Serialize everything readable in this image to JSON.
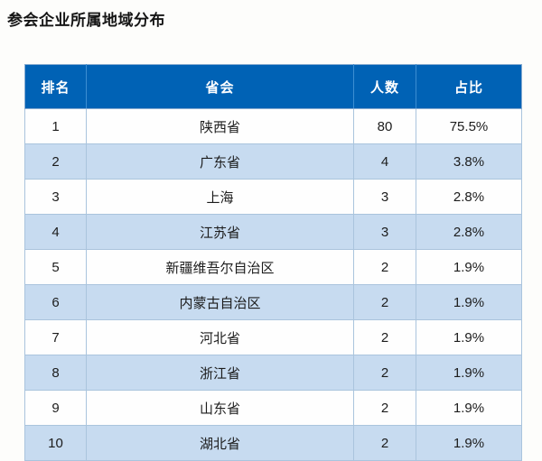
{
  "page": {
    "title": "参会企业所属地域分布"
  },
  "colors": {
    "header_bg": "#0062b5",
    "header_text": "#ffffff",
    "row_stripe": "#c7dbf0",
    "row_plain": "#fefefe",
    "border": "#aac4dd",
    "page_bg": "#fdfdfb"
  },
  "table": {
    "columns": [
      {
        "key": "rank",
        "label": "排名"
      },
      {
        "key": "region",
        "label": "省会"
      },
      {
        "key": "count",
        "label": "人数"
      },
      {
        "key": "pct",
        "label": "占比"
      }
    ],
    "rows": [
      {
        "rank": "1",
        "region": "陕西省",
        "count": "80",
        "pct": "75.5%"
      },
      {
        "rank": "2",
        "region": "广东省",
        "count": "4",
        "pct": "3.8%"
      },
      {
        "rank": "3",
        "region": "上海",
        "count": "3",
        "pct": "2.8%"
      },
      {
        "rank": "4",
        "region": "江苏省",
        "count": "3",
        "pct": "2.8%"
      },
      {
        "rank": "5",
        "region": "新疆维吾尔自治区",
        "count": "2",
        "pct": "1.9%"
      },
      {
        "rank": "6",
        "region": "内蒙古自治区",
        "count": "2",
        "pct": "1.9%"
      },
      {
        "rank": "7",
        "region": "河北省",
        "count": "2",
        "pct": "1.9%"
      },
      {
        "rank": "8",
        "region": "浙江省",
        "count": "2",
        "pct": "1.9%"
      },
      {
        "rank": "9",
        "region": "山东省",
        "count": "2",
        "pct": "1.9%"
      },
      {
        "rank": "10",
        "region": "湖北省",
        "count": "2",
        "pct": "1.9%"
      }
    ]
  },
  "chart_data": {
    "type": "table",
    "title": "参会企业所属地域分布",
    "columns": [
      "排名",
      "省会",
      "人数",
      "占比"
    ],
    "categories": [
      "陕西省",
      "广东省",
      "上海",
      "江苏省",
      "新疆维吾尔自治区",
      "内蒙古自治区",
      "河北省",
      "浙江省",
      "山东省",
      "湖北省"
    ],
    "series": [
      {
        "name": "人数",
        "values": [
          80,
          4,
          3,
          3,
          2,
          2,
          2,
          2,
          2,
          2
        ]
      },
      {
        "name": "占比",
        "values": [
          "75.5%",
          "3.8%",
          "2.8%",
          "2.8%",
          "1.9%",
          "1.9%",
          "1.9%",
          "1.9%",
          "1.9%",
          "1.9%"
        ]
      }
    ]
  }
}
